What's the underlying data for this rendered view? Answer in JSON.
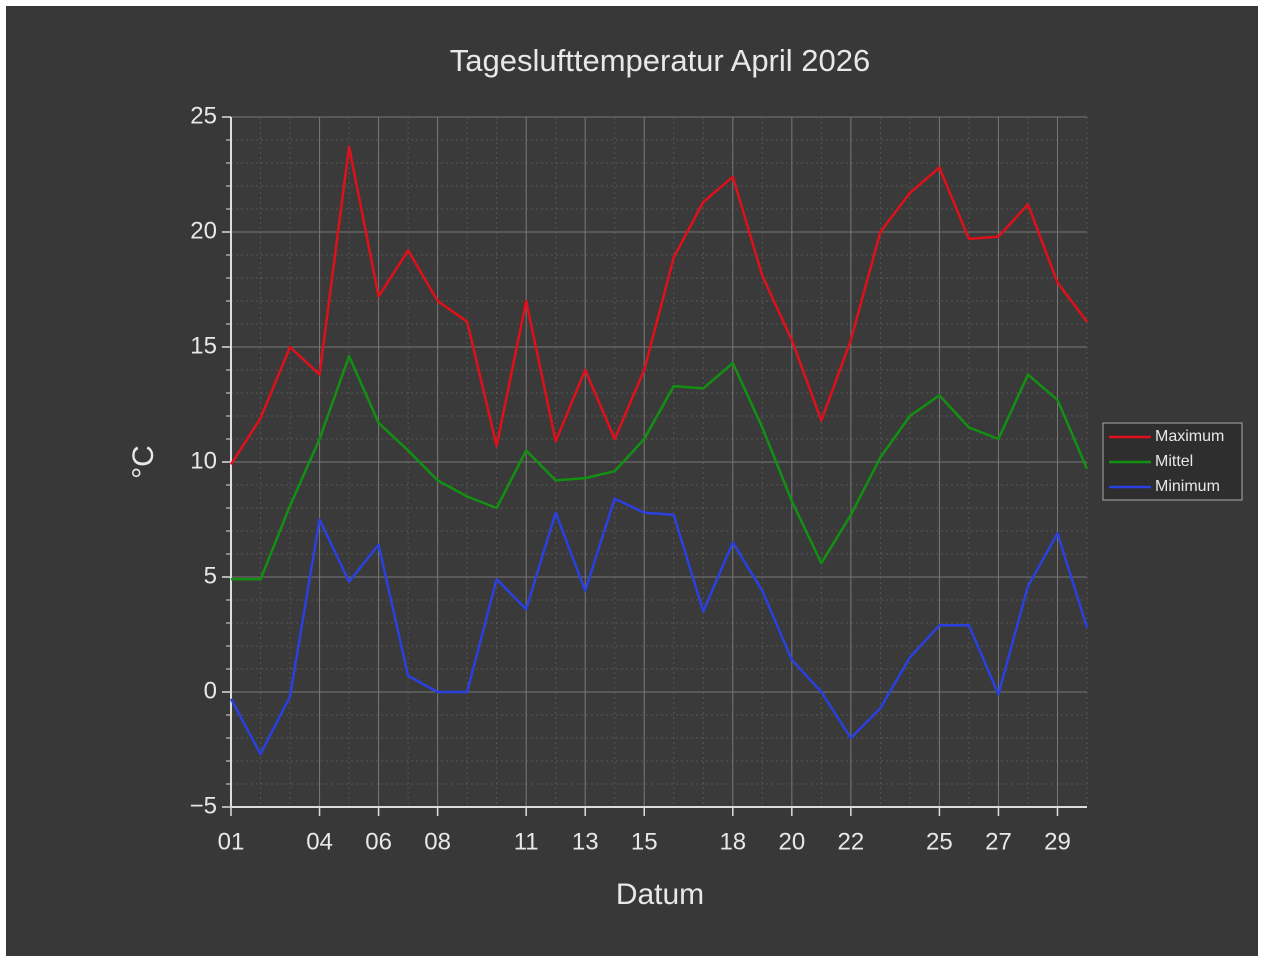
{
  "chart_data": {
    "type": "line",
    "title": "Tageslufttemperatur April 2026",
    "xlabel": "Datum",
    "ylabel": "°C",
    "x": [
      1,
      2,
      3,
      4,
      5,
      6,
      7,
      8,
      9,
      10,
      11,
      12,
      13,
      14,
      15,
      16,
      17,
      18,
      19,
      20,
      21,
      22,
      23,
      24,
      25,
      26,
      27,
      28,
      29,
      30
    ],
    "xlim": [
      1,
      30
    ],
    "xticks": [
      {
        "value": 1,
        "label": "01"
      },
      {
        "value": 4,
        "label": "04"
      },
      {
        "value": 6,
        "label": "06"
      },
      {
        "value": 8,
        "label": "08"
      },
      {
        "value": 11,
        "label": "11"
      },
      {
        "value": 13,
        "label": "13"
      },
      {
        "value": 15,
        "label": "15"
      },
      {
        "value": 18,
        "label": "18"
      },
      {
        "value": 20,
        "label": "20"
      },
      {
        "value": 22,
        "label": "22"
      },
      {
        "value": 25,
        "label": "25"
      },
      {
        "value": 27,
        "label": "27"
      },
      {
        "value": 29,
        "label": "29"
      }
    ],
    "ylim": [
      -5,
      25
    ],
    "yticks": [
      {
        "value": -5,
        "label": "−5"
      },
      0,
      5,
      10,
      15,
      20,
      25
    ],
    "grid": true,
    "legend": "right",
    "series": [
      {
        "name": "Maximum",
        "color": "#e0101a",
        "values": [
          9.9,
          11.9,
          15,
          13.8,
          23.7,
          17.2,
          19.2,
          17,
          16.1,
          10.7,
          17,
          10.9,
          14,
          11,
          14,
          18.9,
          21.3,
          22.4,
          18.1,
          15.3,
          11.8,
          15.3,
          20,
          21.7,
          22.8,
          19.7,
          19.8,
          21.2,
          17.8,
          16.1
        ]
      },
      {
        "name": "Mittel",
        "color": "#129012",
        "values": [
          4.9,
          4.9,
          8.1,
          11,
          14.6,
          11.7,
          10.5,
          9.2,
          8.5,
          8,
          10.5,
          9.2,
          9.3,
          9.6,
          11,
          13.3,
          13.2,
          14.3,
          11.5,
          8.3,
          5.6,
          7.7,
          10.2,
          12,
          12.9,
          11.5,
          11,
          13.8,
          12.7,
          9.7
        ]
      },
      {
        "name": "Minimum",
        "color": "#2a40e0",
        "values": [
          -0.3,
          -2.7,
          -0.2,
          7.5,
          4.8,
          6.4,
          0.7,
          0,
          0,
          4.9,
          3.6,
          7.8,
          4.4,
          8.4,
          7.8,
          7.7,
          3.5,
          6.5,
          4.4,
          1.4,
          0,
          -2,
          -0.7,
          1.5,
          2.9,
          2.9,
          -0.1,
          4.6,
          6.9,
          2.8
        ]
      }
    ]
  }
}
